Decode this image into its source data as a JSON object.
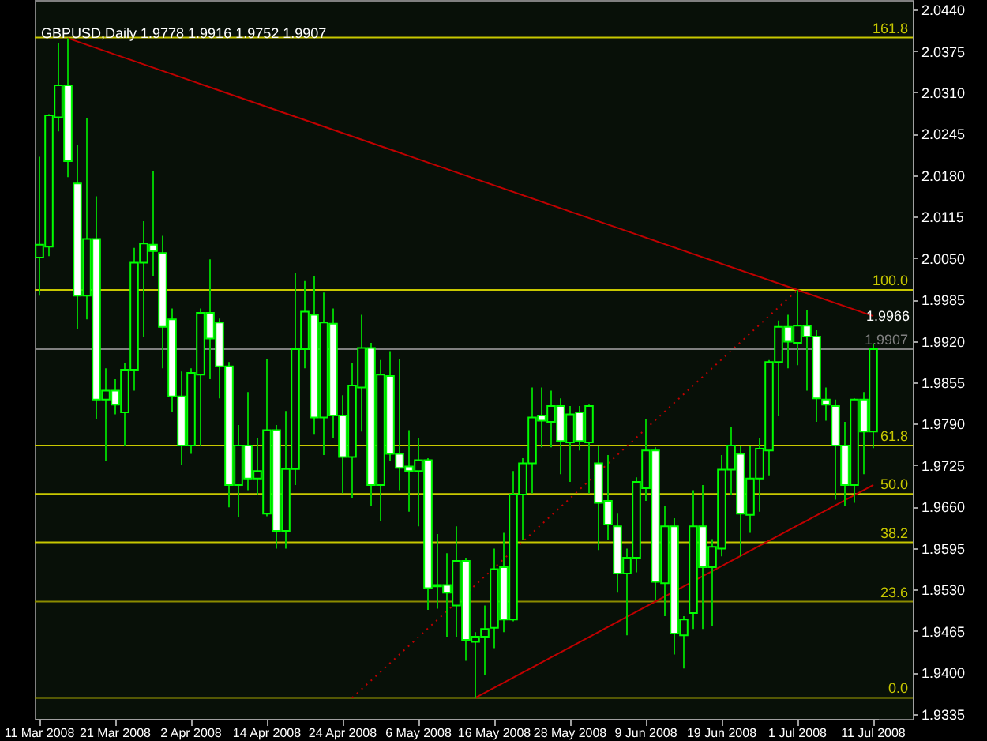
{
  "chart_data": {
    "type": "candlestick",
    "title": "GBPUSD,Daily 1.9778 1.9916 1.9752 1.9907",
    "categories": [
      "11 Mar 2008",
      null,
      null,
      null,
      null,
      null,
      null,
      null,
      "21 Mar 2008",
      null,
      null,
      null,
      null,
      null,
      null,
      null,
      "2 Apr 2008",
      null,
      null,
      null,
      null,
      null,
      null,
      null,
      "14 Apr 2008",
      null,
      null,
      null,
      null,
      null,
      null,
      null,
      "24 Apr 2008",
      null,
      null,
      null,
      null,
      null,
      null,
      null,
      "6 May 2008",
      null,
      null,
      null,
      null,
      null,
      null,
      null,
      "16 May 2008",
      null,
      null,
      null,
      null,
      null,
      null,
      null,
      "28 May 2008",
      null,
      null,
      null,
      null,
      null,
      null,
      null,
      "9 Jun 2008",
      null,
      null,
      null,
      null,
      null,
      null,
      null,
      "19 Jun 2008",
      null,
      null,
      null,
      null,
      null,
      null,
      null,
      "1 Jul 2008",
      null,
      null,
      null,
      null,
      null,
      null,
      null,
      "11 Jul 2008"
    ],
    "ohlc": [
      [
        2.0051,
        2.0209,
        1.9991,
        2.0071
      ],
      [
        2.0068,
        2.0276,
        2.0053,
        2.0274
      ],
      [
        2.0271,
        2.0388,
        2.0249,
        2.0321
      ],
      [
        2.0321,
        2.0395,
        2.0177,
        2.0202
      ],
      [
        2.0167,
        2.0227,
        1.9939,
        1.9991
      ],
      [
        1.9991,
        2.0269,
        1.9954,
        2.008
      ],
      [
        2.008,
        2.0147,
        1.9798,
        1.9828
      ],
      [
        1.9828,
        1.9877,
        1.9731,
        1.9842
      ],
      [
        1.9842,
        1.986,
        1.9805,
        1.982
      ],
      [
        1.9808,
        1.9885,
        1.9756,
        1.9875
      ],
      [
        1.9875,
        2.0066,
        1.9842,
        2.0043
      ],
      [
        2.0043,
        2.0108,
        1.9927,
        2.0073
      ],
      [
        2.0071,
        2.0187,
        2.0021,
        2.0061
      ],
      [
        2.0058,
        2.0085,
        1.9877,
        1.9942
      ],
      [
        1.9954,
        1.9971,
        1.9808,
        1.9833
      ],
      [
        1.9833,
        1.9872,
        1.9726,
        1.9756
      ],
      [
        1.9756,
        1.9877,
        1.9743,
        1.987
      ],
      [
        1.9867,
        1.9971,
        1.9756,
        1.9964
      ],
      [
        1.9964,
        2.0048,
        1.986,
        1.9924
      ],
      [
        1.9949,
        1.9955,
        1.983,
        1.988
      ],
      [
        1.988,
        1.9887,
        1.9659,
        1.9694
      ],
      [
        1.9694,
        1.9788,
        1.9644,
        1.9756
      ],
      [
        1.9756,
        1.984,
        1.9686,
        1.9704
      ],
      [
        1.9704,
        1.9768,
        1.9679,
        1.9716
      ],
      [
        1.9649,
        1.9892,
        1.9645,
        1.978
      ],
      [
        1.978,
        1.9788,
        1.9594,
        1.9622
      ],
      [
        1.9622,
        1.981,
        1.9594,
        1.9719
      ],
      [
        1.9719,
        2.0026,
        1.9694,
        1.9907
      ],
      [
        1.9907,
        2.0014,
        1.9877,
        1.9966
      ],
      [
        1.9961,
        2.0021,
        1.9773,
        1.98
      ],
      [
        1.98,
        1.9996,
        1.9741,
        1.9949
      ],
      [
        1.9947,
        1.9971,
        1.9768,
        1.9803
      ],
      [
        1.9803,
        1.9835,
        1.9681,
        1.9738
      ],
      [
        1.9738,
        1.9885,
        1.9674,
        1.985
      ],
      [
        1.9847,
        1.9961,
        1.9778,
        1.9909
      ],
      [
        1.9909,
        1.9917,
        1.9661,
        1.9694
      ],
      [
        1.9694,
        1.989,
        1.9637,
        1.9867
      ],
      [
        1.9865,
        1.9904,
        1.9731,
        1.9743
      ],
      [
        1.9743,
        1.9892,
        1.9686,
        1.9721
      ],
      [
        1.9723,
        1.978,
        1.9652,
        1.9716
      ],
      [
        1.9716,
        1.9768,
        1.9629,
        1.9733
      ],
      [
        1.9733,
        1.9736,
        1.9498,
        1.9532
      ],
      [
        1.9535,
        1.9617,
        1.95,
        1.9537
      ],
      [
        1.9537,
        1.9587,
        1.9456,
        1.9525
      ],
      [
        1.9505,
        1.9629,
        1.9456,
        1.9575
      ],
      [
        1.9575,
        1.958,
        1.9418,
        1.9451
      ],
      [
        1.9448,
        1.9463,
        1.936,
        1.9456
      ],
      [
        1.9456,
        1.9505,
        1.9396,
        1.9468
      ],
      [
        1.947,
        1.9594,
        1.9438,
        1.9562
      ],
      [
        1.9565,
        1.9619,
        1.9463,
        1.9483
      ],
      [
        1.9483,
        1.9716,
        1.948,
        1.9679
      ],
      [
        1.9679,
        1.9736,
        1.9607,
        1.9728
      ],
      [
        1.9728,
        1.9847,
        1.9681,
        1.98
      ],
      [
        1.9803,
        1.9847,
        1.9753,
        1.9795
      ],
      [
        1.9793,
        1.9842,
        1.9753,
        1.9818
      ],
      [
        1.9818,
        1.983,
        1.9711,
        1.9763
      ],
      [
        1.9761,
        1.9818,
        1.9699,
        1.9805
      ],
      [
        1.9808,
        1.9818,
        1.9748,
        1.9763
      ],
      [
        1.9761,
        1.982,
        1.9681,
        1.9818
      ],
      [
        1.9728,
        1.9756,
        1.9592,
        1.9666
      ],
      [
        1.9669,
        1.9741,
        1.9607,
        1.9632
      ],
      [
        1.9629,
        1.9649,
        1.9525,
        1.9555
      ],
      [
        1.9555,
        1.9594,
        1.9458,
        1.958
      ],
      [
        1.958,
        1.9706,
        1.9557,
        1.9699
      ],
      [
        1.9689,
        1.9798,
        1.9669,
        1.9748
      ],
      [
        1.9748,
        1.9753,
        1.9513,
        1.9542
      ],
      [
        1.954,
        1.9661,
        1.9488,
        1.9629
      ],
      [
        1.9629,
        1.9642,
        1.9428,
        1.9461
      ],
      [
        1.9458,
        1.9488,
        1.9406,
        1.9483
      ],
      [
        1.9493,
        1.9686,
        1.9468,
        1.9629
      ],
      [
        1.9629,
        1.9694,
        1.9468,
        1.9565
      ],
      [
        1.9565,
        1.9609,
        1.9473,
        1.9597
      ],
      [
        1.9594,
        1.9741,
        1.9582,
        1.9718
      ],
      [
        1.9718,
        1.9785,
        1.9679,
        1.9756
      ],
      [
        1.9743,
        1.9756,
        1.9582,
        1.9649
      ],
      [
        1.9647,
        1.9756,
        1.9619,
        1.9704
      ],
      [
        1.9704,
        1.9768,
        1.9652,
        1.9751
      ],
      [
        1.9748,
        1.989,
        1.9709,
        1.9887
      ],
      [
        1.9887,
        1.9952,
        1.9803,
        1.9942
      ],
      [
        1.9942,
        1.9961,
        1.9877,
        1.9919
      ],
      [
        1.9917,
        2.0,
        1.9882,
        1.9944
      ],
      [
        1.9944,
        1.9969,
        1.9842,
        1.9927
      ],
      [
        1.9927,
        1.9937,
        1.9793,
        1.983
      ],
      [
        1.9828,
        1.9847,
        1.9795,
        1.982
      ],
      [
        1.9818,
        1.9828,
        1.9671,
        1.9756
      ],
      [
        1.9756,
        1.9793,
        1.9661,
        1.9694
      ],
      [
        1.9694,
        1.983,
        1.9666,
        1.9828
      ],
      [
        1.9828,
        1.984,
        1.9711,
        1.9778
      ],
      [
        1.9778,
        1.9916,
        1.9752,
        1.9907
      ]
    ],
    "series": [
      {
        "type": "line",
        "color": "#c00000",
        "values": [
          null,
          null,
          null,
          2.0395,
          null,
          null,
          null,
          null,
          null,
          null,
          null,
          null,
          null,
          null,
          null,
          null,
          null,
          null,
          null,
          null,
          null,
          null,
          null,
          null,
          null,
          null,
          null,
          null,
          null,
          null,
          null,
          null,
          null,
          null,
          null,
          null,
          null,
          null,
          null,
          null,
          null,
          null,
          null,
          null,
          null,
          null,
          null,
          null,
          null,
          null,
          null,
          null,
          null,
          null,
          null,
          null,
          null,
          null,
          null,
          null,
          null,
          null,
          null,
          null,
          null,
          null,
          null,
          null,
          null,
          null,
          null,
          null,
          null,
          null,
          null,
          null,
          null,
          null,
          null,
          null,
          2.0,
          null,
          null,
          null,
          null,
          null,
          null,
          null,
          1.9959
        ]
      },
      {
        "type": "line",
        "color": "#c00000",
        "values": [
          null,
          null,
          null,
          null,
          null,
          null,
          null,
          null,
          null,
          null,
          null,
          null,
          null,
          null,
          null,
          null,
          null,
          null,
          null,
          null,
          null,
          null,
          null,
          null,
          null,
          null,
          null,
          null,
          null,
          null,
          null,
          null,
          null,
          null,
          null,
          null,
          null,
          null,
          null,
          null,
          null,
          null,
          null,
          null,
          null,
          null,
          1.936,
          null,
          null,
          null,
          null,
          null,
          null,
          null,
          null,
          null,
          null,
          null,
          null,
          null,
          null,
          null,
          null,
          null,
          null,
          null,
          null,
          null,
          null,
          null,
          null,
          null,
          null,
          null,
          null,
          null,
          null,
          null,
          null,
          null,
          null,
          null,
          null,
          null,
          null,
          null,
          null,
          null,
          1.9694
        ]
      },
      {
        "type": "line",
        "color": "#c00000",
        "line_style": "dotted",
        "values": [
          null,
          null,
          null,
          null,
          null,
          null,
          null,
          null,
          null,
          null,
          null,
          null,
          null,
          null,
          null,
          null,
          null,
          null,
          null,
          null,
          null,
          null,
          null,
          null,
          null,
          null,
          null,
          null,
          null,
          null,
          null,
          null,
          null,
          1.936,
          null,
          null,
          null,
          null,
          null,
          null,
          null,
          null,
          null,
          null,
          null,
          null,
          null,
          null,
          null,
          null,
          null,
          null,
          null,
          null,
          null,
          null,
          null,
          null,
          null,
          null,
          null,
          null,
          null,
          null,
          null,
          null,
          null,
          null,
          null,
          null,
          null,
          null,
          null,
          null,
          null,
          null,
          null,
          null,
          null,
          null,
          2.0,
          null,
          null,
          null,
          null,
          null,
          null,
          null,
          null
        ]
      }
    ],
    "ylim": [
      1.9327,
      2.0455
    ],
    "yticks": [
      {
        "value": 2.044,
        "label": "2.0440"
      },
      {
        "value": 2.0375,
        "label": "2.0375"
      },
      {
        "value": 2.031,
        "label": "2.0310"
      },
      {
        "value": 2.0245,
        "label": "2.0245"
      },
      {
        "value": 2.018,
        "label": "2.0180"
      },
      {
        "value": 2.0115,
        "label": "2.0115"
      },
      {
        "value": 2.005,
        "label": "2.0050"
      },
      {
        "value": 1.9985,
        "label": "1.9985"
      },
      {
        "value": 1.992,
        "label": "1.9920"
      },
      {
        "value": 1.9855,
        "label": "1.9855"
      },
      {
        "value": 1.979,
        "label": "1.9790"
      },
      {
        "value": 1.9725,
        "label": "1.9725"
      },
      {
        "value": 1.966,
        "label": "1.9660"
      },
      {
        "value": 1.9595,
        "label": "1.9595"
      },
      {
        "value": 1.953,
        "label": "1.9530"
      },
      {
        "value": 1.9465,
        "label": "1.9465"
      },
      {
        "value": 1.94,
        "label": "1.9400"
      },
      {
        "value": 1.9335,
        "label": "1.9335"
      }
    ],
    "ref_lines": [
      {
        "axis": "y",
        "value": 2.0396,
        "color": "#c8c800"
      },
      {
        "axis": "y",
        "value": 2.0,
        "color": "#c8c800"
      },
      {
        "axis": "y",
        "value": 1.9756,
        "color": "#c8c800"
      },
      {
        "axis": "y",
        "value": 1.968,
        "color": "#c8c800"
      },
      {
        "axis": "y",
        "value": 1.9604,
        "color": "#c8c800"
      },
      {
        "axis": "y",
        "value": 1.9511,
        "color": "#8c8c00"
      },
      {
        "axis": "y",
        "value": 1.936,
        "color": "#a0a000"
      },
      {
        "axis": "y",
        "value": 1.9907,
        "label": "1.9907",
        "color": "#808080"
      }
    ],
    "annotations": [
      {
        "text": "161.8",
        "y": 2.0396
      },
      {
        "text": "100.0",
        "y": 2.0
      },
      {
        "text": "61.8",
        "y": 1.9756
      },
      {
        "text": "50.0",
        "y": 1.968
      },
      {
        "text": "38.2",
        "y": 1.9604
      },
      {
        "text": "23.6",
        "y": 1.9511
      },
      {
        "text": "0.0",
        "y": 1.936
      },
      "1.9966"
    ]
  }
}
